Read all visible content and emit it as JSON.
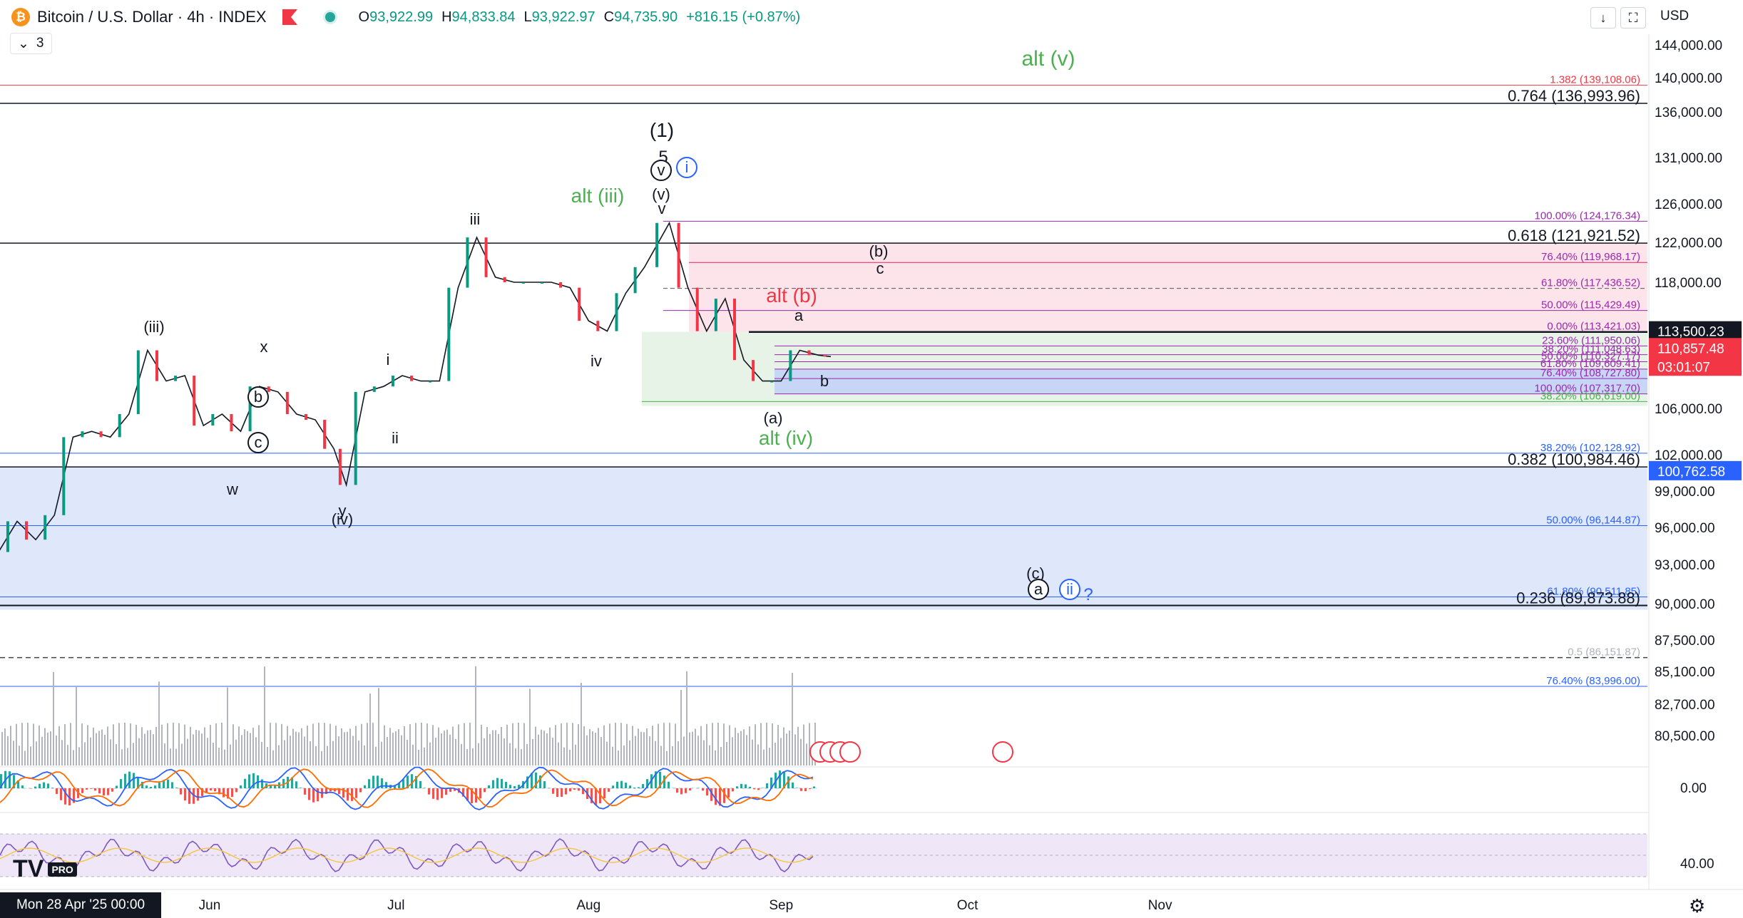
{
  "header": {
    "title": "Bitcoin / U.S. Dollar · 4h · INDEX",
    "open_label": "O",
    "open": "93,922.99",
    "high_label": "H",
    "high": "94,833.84",
    "low_label": "L",
    "low": "93,922.97",
    "close_label": "C",
    "close": "94,735.90",
    "change": "+816.15 (+0.87%)",
    "indicator_count": "3",
    "currency": "USD",
    "coin_icon": "₿"
  },
  "footer": {
    "crosshair_date": "Mon 28 Apr '25   00:00",
    "logo_text": "TV",
    "pro_label": "PRO"
  },
  "colors": {
    "up": "#089981",
    "down": "#f23645",
    "bg": "#ffffff",
    "blue_box": "#dbe4fb",
    "green_box": "#e6f3e6",
    "red_box": "#fce4ea",
    "fib_purple": "#9c27b0",
    "wave_green": "#4caf50",
    "wave_red": "#f23645",
    "blue_label": "#2962ff"
  },
  "chart_data": [
    {
      "type": "line",
      "title": "Bitcoin / U.S. Dollar · 4h · INDEX",
      "y_scale": "log",
      "ylim": [
        78500,
        147000
      ],
      "xlim": [
        "2025-04-28",
        "2025-11-25"
      ],
      "x_tick_labels": [
        "Jun",
        "Jul",
        "Aug",
        "Sep",
        "Oct",
        "Nov"
      ],
      "x_ticks": [
        "2025-06-01",
        "2025-07-01",
        "2025-08-01",
        "2025-09-01",
        "2025-10-01",
        "2025-11-01"
      ],
      "y_tick_values": [
        144000,
        140000,
        136000,
        131000,
        126000,
        122000,
        118000,
        114000,
        110000,
        106000,
        102000,
        99000,
        96000,
        93000,
        90000,
        87500,
        85100,
        82700,
        80500
      ],
      "y_tick_labels": [
        "144,000.00",
        "140,000.00",
        "136,000.00",
        "131,000.00",
        "126,000.00",
        "122,000.00",
        "118,000.00",
        "114,000.00",
        "110,000.00",
        "106,000.00",
        "102,000.00",
        "99,000.00",
        "96,000.00",
        "93,000.00",
        "90,000.00",
        "87,500.00",
        "85,100.00",
        "82,700.00",
        "80,500.00"
      ],
      "series": [
        {
          "x": [
            "2025-04-28",
            "2025-05-01",
            "2025-05-04",
            "2025-05-07",
            "2025-05-10",
            "2025-05-13",
            "2025-05-16",
            "2025-05-19",
            "2025-05-22",
            "2025-05-25",
            "2025-05-28",
            "2025-05-31",
            "2025-06-03",
            "2025-06-06",
            "2025-06-09",
            "2025-06-12",
            "2025-06-15",
            "2025-06-18",
            "2025-06-21",
            "2025-06-23",
            "2025-06-26",
            "2025-06-29",
            "2025-07-02",
            "2025-07-05",
            "2025-07-08",
            "2025-07-11",
            "2025-07-14",
            "2025-07-17",
            "2025-07-20",
            "2025-07-23",
            "2025-07-26",
            "2025-07-29",
            "2025-08-01",
            "2025-08-04",
            "2025-08-07",
            "2025-08-10",
            "2025-08-14",
            "2025-08-17",
            "2025-08-20",
            "2025-08-23",
            "2025-08-26",
            "2025-08-29",
            "2025-09-01",
            "2025-09-04",
            "2025-09-07",
            "2025-09-09"
          ],
          "values": [
            94000,
            96500,
            95000,
            97000,
            103500,
            104000,
            103500,
            105500,
            111500,
            108500,
            109000,
            104500,
            105500,
            104000,
            108000,
            107500,
            105500,
            105000,
            102500,
            99500,
            107500,
            108000,
            109000,
            108500,
            108500,
            117500,
            122500,
            118500,
            118000,
            118000,
            118000,
            117500,
            114500,
            113500,
            117000,
            119500,
            124000,
            117500,
            113500,
            116500,
            110500,
            108500,
            108500,
            111500,
            111000,
            110857
          ]
        }
      ],
      "last_price_label": "110,857.48",
      "countdown_label": "03:01:07",
      "axis_price_tags": [
        "113,500.23",
        "100,762.58"
      ]
    },
    {
      "type": "line",
      "title": "",
      "y_tick_labels": [
        "0.00"
      ]
    },
    {
      "type": "line",
      "title": "",
      "y_tick_labels": [
        "40.00"
      ]
    }
  ],
  "fib_levels": [
    {
      "label": "1.382 (139,108.06)",
      "price": 139108.06
    },
    {
      "label": "0.764 (136,993.96)",
      "price": 136993.96
    },
    {
      "label": "100.00% (124,176.34)",
      "price": 124176.34
    },
    {
      "label": "0.618 (121,921.52)",
      "price": 121921.52
    },
    {
      "label": "76.40% (119,968.17)",
      "price": 119968.17
    },
    {
      "label": "61.80% (117,436.52)",
      "price": 117436.52
    },
    {
      "label": "50.00% (115,429.49)",
      "price": 115429.49
    },
    {
      "label": "0.00% (113,421.03)",
      "price": 113421.03
    },
    {
      "label": "23.60% (111,950.06)",
      "price": 111950.06
    },
    {
      "label": "38.20% (111,048.63)",
      "price": 111048.63
    },
    {
      "label": "50.00% (110,327.17)",
      "price": 110327.17
    },
    {
      "label": "61.80% (109,609.41)",
      "price": 109609.41
    },
    {
      "label": "76.40% (108,727.80)",
      "price": 108727.8
    },
    {
      "label": "100.00% (107,317.70)",
      "price": 107317.7
    },
    {
      "label": "38.20% (106,619.00)",
      "price": 106619.0
    },
    {
      "label": "38.20% (102,128.92)",
      "price": 102128.92
    },
    {
      "label": "0.382 (100,984.46)",
      "price": 100984.46
    },
    {
      "label": "50.00% (96,144.87)",
      "price": 96144.87
    },
    {
      "label": "61.80% (90,511.85)",
      "price": 90511.85
    },
    {
      "label": "0.236 (89,873.88)",
      "price": 89873.88
    },
    {
      "label": "0.5 (86,151.87)",
      "price": 86151.87
    },
    {
      "label": "76.40% (83,996.00)",
      "price": 83996.0
    }
  ],
  "wave_labels": [
    {
      "text": "alt (v)",
      "color": "green"
    },
    {
      "text": "(1)",
      "color": "black"
    },
    {
      "text": "5",
      "color": "black"
    },
    {
      "text": "v",
      "color": "black",
      "circled": true
    },
    {
      "text": "i",
      "color": "blue",
      "circled": true
    },
    {
      "text": "(v)",
      "color": "black"
    },
    {
      "text": "v",
      "color": "black"
    },
    {
      "text": "alt (iii)",
      "color": "green"
    },
    {
      "text": "iii",
      "color": "black"
    },
    {
      "text": "(b)",
      "color": "black"
    },
    {
      "text": "c",
      "color": "black"
    },
    {
      "text": "alt (b)",
      "color": "red"
    },
    {
      "text": "a",
      "color": "black"
    },
    {
      "text": "b",
      "color": "black"
    },
    {
      "text": "(a)",
      "color": "black"
    },
    {
      "text": "alt (iv)",
      "color": "green"
    },
    {
      "text": "(iii)",
      "color": "black"
    },
    {
      "text": "x",
      "color": "black"
    },
    {
      "text": "b",
      "color": "black",
      "circled": true
    },
    {
      "text": "c",
      "color": "black",
      "circled": true
    },
    {
      "text": "w",
      "color": "black"
    },
    {
      "text": "y",
      "color": "black"
    },
    {
      "text": "(iv)",
      "color": "black"
    },
    {
      "text": "i",
      "color": "black"
    },
    {
      "text": "ii",
      "color": "black"
    },
    {
      "text": "iv",
      "color": "black"
    },
    {
      "text": "(c)",
      "color": "black"
    },
    {
      "text": "a",
      "color": "black",
      "circled": true
    },
    {
      "text": "ii",
      "color": "blue",
      "circled": true
    },
    {
      "text": "?",
      "color": "blue"
    }
  ]
}
